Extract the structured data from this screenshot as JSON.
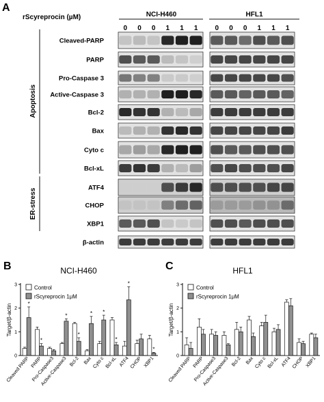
{
  "panel_a": {
    "letter": "A",
    "treatment_label": "rScyreprocin (µM)",
    "cell_lines": [
      "NCI-H460",
      "HFL1"
    ],
    "doses": [
      "0",
      "0",
      "0",
      "1",
      "1",
      "1"
    ],
    "groups": [
      "Apoptosis",
      "ER-stress"
    ],
    "proteins": [
      "Cleaved-PARP",
      "PARP",
      "Pro-Caspase 3",
      "Active-Caspase 3",
      "Bcl-2",
      "Bax",
      "Cyto c",
      "Bcl-xL",
      "ATF4",
      "CHOP",
      "XBP1",
      "β-actin"
    ],
    "band_intensity_relative": {
      "NCI-H460": [
        [
          0.15,
          0.2,
          0.15,
          0.95,
          1.0,
          1.0
        ],
        [
          0.75,
          0.7,
          0.7,
          0.2,
          0.15,
          0.1
        ],
        [
          0.55,
          0.5,
          0.5,
          0.12,
          0.12,
          0.1
        ],
        [
          0.25,
          0.25,
          0.25,
          1.0,
          1.0,
          0.95
        ],
        [
          0.95,
          0.9,
          0.9,
          0.25,
          0.2,
          0.3
        ],
        [
          0.2,
          0.25,
          0.25,
          0.9,
          0.95,
          0.9
        ],
        [
          0.3,
          0.35,
          0.3,
          0.95,
          1.0,
          1.0
        ],
        [
          0.85,
          0.9,
          0.85,
          0.25,
          0.2,
          0.35
        ],
        [
          0.1,
          0.1,
          0.1,
          0.75,
          0.85,
          0.95
        ],
        [
          0.15,
          0.15,
          0.15,
          0.5,
          0.6,
          0.65
        ],
        [
          0.7,
          0.7,
          0.75,
          0.15,
          0.12,
          0.15
        ],
        [
          0.85,
          0.85,
          0.85,
          0.85,
          0.85,
          0.85
        ]
      ],
      "HFL1": [
        [
          0.7,
          0.7,
          0.6,
          0.75,
          0.7,
          0.75
        ],
        [
          0.8,
          0.8,
          0.8,
          0.8,
          0.8,
          0.8
        ],
        [
          0.8,
          0.8,
          0.8,
          0.8,
          0.8,
          0.75
        ],
        [
          0.7,
          0.7,
          0.65,
          0.7,
          0.7,
          0.65
        ],
        [
          0.85,
          0.85,
          0.85,
          0.85,
          0.85,
          0.85
        ],
        [
          0.8,
          0.8,
          0.8,
          0.8,
          0.8,
          0.85
        ],
        [
          0.75,
          0.7,
          0.7,
          0.75,
          0.75,
          0.75
        ],
        [
          0.75,
          0.8,
          0.75,
          0.75,
          0.75,
          0.8
        ],
        [
          0.75,
          0.75,
          0.75,
          0.75,
          0.8,
          0.8
        ],
        [
          0.35,
          0.35,
          0.35,
          0.4,
          0.4,
          0.6
        ],
        [
          0.75,
          0.75,
          0.7,
          0.75,
          0.75,
          0.75
        ],
        [
          0.85,
          0.85,
          0.85,
          0.85,
          0.85,
          0.85
        ]
      ]
    }
  },
  "panel_b": {
    "letter": "B"
  },
  "panel_c": {
    "letter": "C"
  },
  "chart_data": [
    {
      "type": "bar",
      "title": "NCI-H460",
      "ylabel": "Target/β-actin",
      "ylim": [
        0,
        3
      ],
      "yticks": [
        "0",
        "1",
        "2",
        "3"
      ],
      "categories": [
        "Cleaved PARP",
        "PARP",
        "Pro-Caspase3",
        "Active-Caspase3",
        "Bcl-2",
        "Bax",
        "Cyto c",
        "Bcl-xL",
        "ATF4",
        "CHOP",
        "XBP1"
      ],
      "series": [
        {
          "name": "Control",
          "values": [
            0.3,
            1.1,
            0.3,
            0.5,
            1.35,
            0.2,
            0.5,
            1.5,
            0.4,
            0.5,
            0.7
          ],
          "errors": [
            0.05,
            0.1,
            0.05,
            0.05,
            0.05,
            0.05,
            0.1,
            0.1,
            0.2,
            0.15,
            0.15
          ]
        },
        {
          "name": "rScyreprocin 1μM",
          "values": [
            1.6,
            0.4,
            0.2,
            1.45,
            0.6,
            1.35,
            1.5,
            0.45,
            2.35,
            0.7,
            0.1
          ],
          "errors": [
            0.45,
            0.1,
            0.05,
            0.1,
            0.15,
            0.3,
            0.2,
            0.1,
            0.55,
            0.2,
            0.03
          ]
        }
      ],
      "significance": [
        "*",
        "*",
        "",
        "*",
        "*",
        "*",
        "*",
        "*",
        "*",
        "",
        "*"
      ],
      "legend_position": "top-left"
    },
    {
      "type": "bar",
      "title": "HFL1",
      "ylabel": "Target/β-actin",
      "ylim": [
        0,
        3
      ],
      "yticks": [
        "0",
        "1",
        "2",
        "3"
      ],
      "categories": [
        "Cleaved PARP",
        "PARP",
        "Pro-Caspase3",
        "Active-Caspase3",
        "Bcl-2",
        "Bax",
        "Cyto c",
        "Bcl-xL",
        "ATF4",
        "CHOP",
        "XBP1"
      ],
      "series": [
        {
          "name": "Control",
          "values": [
            0.45,
            1.2,
            0.9,
            0.85,
            1.1,
            1.5,
            1.25,
            1.0,
            2.25,
            0.55,
            0.9
          ],
          "errors": [
            0.3,
            0.35,
            0.2,
            0.15,
            0.3,
            0.15,
            0.15,
            0.15,
            0.1,
            0.15,
            0.05
          ]
        },
        {
          "name": "rScyreprocin 1μM",
          "values": [
            0.3,
            0.9,
            0.85,
            0.45,
            1.0,
            0.8,
            1.4,
            1.1,
            2.1,
            0.5,
            0.75
          ],
          "errors": [
            0.25,
            0.2,
            0.15,
            0.05,
            0.2,
            0.15,
            0.3,
            0.2,
            0.3,
            0.1,
            0.15
          ]
        }
      ],
      "significance": [
        "",
        "",
        "",
        "",
        "",
        "",
        "",
        "",
        "",
        "",
        ""
      ],
      "legend_position": "top-left"
    }
  ]
}
